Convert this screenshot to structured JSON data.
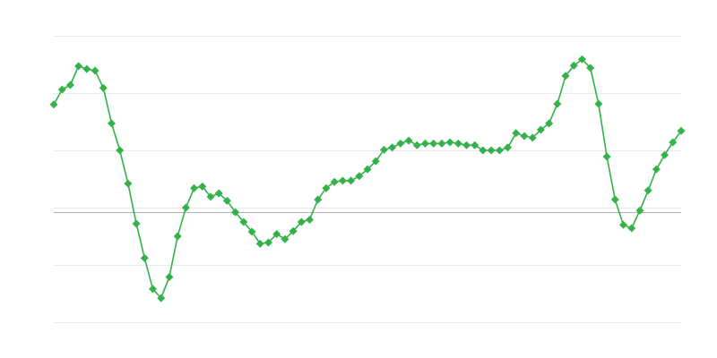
{
  "chart_data": {
    "type": "line",
    "title": "",
    "xlabel": "",
    "ylabel": "",
    "ylim": [
      -1.92,
      3.08
    ],
    "grid": true,
    "gridlines": [
      3.08,
      2.08,
      1.08,
      0.08,
      -0.92,
      -1.92
    ],
    "reference_line": 0,
    "marker": "diamond",
    "colors": {
      "series": "#33b24a",
      "grid": "#ebebeb",
      "reference": "#b0b0b0"
    },
    "series": [
      {
        "values": [
          1.88,
          2.14,
          2.22,
          2.55,
          2.5,
          2.47,
          2.17,
          1.55,
          1.08,
          0.5,
          -0.2,
          -0.8,
          -1.34,
          -1.5,
          -1.13,
          -0.42,
          0.08,
          0.42,
          0.45,
          0.27,
          0.33,
          0.2,
          0.0,
          -0.17,
          -0.34,
          -0.55,
          -0.53,
          -0.38,
          -0.47,
          -0.33,
          -0.17,
          -0.13,
          0.22,
          0.42,
          0.53,
          0.55,
          0.55,
          0.63,
          0.75,
          0.89,
          1.09,
          1.13,
          1.2,
          1.25,
          1.17,
          1.2,
          1.2,
          1.2,
          1.22,
          1.2,
          1.17,
          1.17,
          1.08,
          1.08,
          1.08,
          1.13,
          1.38,
          1.33,
          1.3,
          1.44,
          1.55,
          1.89,
          2.38,
          2.56,
          2.67,
          2.52,
          1.89,
          0.97,
          0.22,
          -0.22,
          -0.28,
          0.03,
          0.38,
          0.75,
          1.0,
          1.22,
          1.42
        ]
      }
    ]
  }
}
